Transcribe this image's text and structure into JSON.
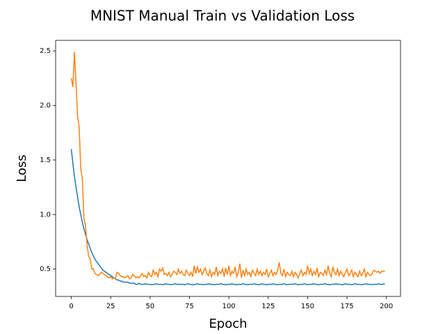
{
  "chart_data": {
    "type": "line",
    "title": "MNIST Manual Train vs Validation Loss",
    "x_label": "Epoch",
    "y_label": "Loss",
    "x": [
      0,
      1,
      2,
      3,
      4,
      5,
      6,
      7,
      8,
      9,
      10,
      11,
      12,
      13,
      14,
      15,
      16,
      17,
      18,
      19,
      20,
      21,
      22,
      23,
      24,
      25,
      26,
      27,
      28,
      29,
      30,
      31,
      32,
      33,
      34,
      35,
      36,
      37,
      38,
      39,
      40,
      41,
      42,
      43,
      44,
      45,
      46,
      47,
      48,
      49,
      50,
      51,
      52,
      53,
      54,
      55,
      56,
      57,
      58,
      59,
      60,
      61,
      62,
      63,
      64,
      65,
      66,
      67,
      68,
      69,
      70,
      71,
      72,
      73,
      74,
      75,
      76,
      77,
      78,
      79,
      80,
      81,
      82,
      83,
      84,
      85,
      86,
      87,
      88,
      89,
      90,
      91,
      92,
      93,
      94,
      95,
      96,
      97,
      98,
      99,
      100,
      101,
      102,
      103,
      104,
      105,
      106,
      107,
      108,
      109,
      110,
      111,
      112,
      113,
      114,
      115,
      116,
      117,
      118,
      119,
      120,
      121,
      122,
      123,
      124,
      125,
      126,
      127,
      128,
      129,
      130,
      131,
      132,
      133,
      134,
      135,
      136,
      137,
      138,
      139,
      140,
      141,
      142,
      143,
      144,
      145,
      146,
      147,
      148,
      149,
      150,
      151,
      152,
      153,
      154,
      155,
      156,
      157,
      158,
      159,
      160,
      161,
      162,
      163,
      164,
      165,
      166,
      167,
      168,
      169,
      170,
      171,
      172,
      173,
      174,
      175,
      176,
      177,
      178,
      179,
      180,
      181,
      182,
      183,
      184,
      185,
      186,
      187,
      188,
      189,
      190,
      191,
      192,
      193,
      194,
      195,
      196,
      197,
      198,
      199
    ],
    "series": [
      {
        "color": "#1f77b4",
        "values": [
          1.6,
          1.47,
          1.35,
          1.25,
          1.16,
          1.07,
          1.0,
          0.93,
          0.87,
          0.82,
          0.77,
          0.73,
          0.69,
          0.65,
          0.62,
          0.59,
          0.57,
          0.55,
          0.53,
          0.51,
          0.49,
          0.48,
          0.47,
          0.46,
          0.45,
          0.44,
          0.43,
          0.42,
          0.41,
          0.4,
          0.4,
          0.39,
          0.39,
          0.38,
          0.38,
          0.38,
          0.38,
          0.37,
          0.37,
          0.37,
          0.37,
          0.36,
          0.36,
          0.37,
          0.36,
          0.36,
          0.36,
          0.365,
          0.36,
          0.36,
          0.36,
          0.355,
          0.36,
          0.36,
          0.365,
          0.36,
          0.36,
          0.36,
          0.355,
          0.36,
          0.365,
          0.36,
          0.36,
          0.355,
          0.36,
          0.36,
          0.365,
          0.36,
          0.36,
          0.36,
          0.36,
          0.36,
          0.355,
          0.36,
          0.365,
          0.36,
          0.36,
          0.355,
          0.36,
          0.36,
          0.365,
          0.36,
          0.36,
          0.36,
          0.355,
          0.36,
          0.36,
          0.365,
          0.36,
          0.36,
          0.36,
          0.355,
          0.36,
          0.36,
          0.36,
          0.365,
          0.36,
          0.36,
          0.355,
          0.36,
          0.36,
          0.36,
          0.365,
          0.36,
          0.36,
          0.355,
          0.36,
          0.36,
          0.36,
          0.365,
          0.36,
          0.36,
          0.355,
          0.36,
          0.36,
          0.36,
          0.365,
          0.36,
          0.36,
          0.355,
          0.36,
          0.365,
          0.36,
          0.36,
          0.355,
          0.36,
          0.36,
          0.36,
          0.365,
          0.36,
          0.36,
          0.355,
          0.36,
          0.36,
          0.36,
          0.365,
          0.36,
          0.355,
          0.36,
          0.36,
          0.36,
          0.36,
          0.365,
          0.36,
          0.355,
          0.36,
          0.36,
          0.36,
          0.365,
          0.36,
          0.355,
          0.36,
          0.36,
          0.36,
          0.365,
          0.36,
          0.36,
          0.355,
          0.36,
          0.36,
          0.36,
          0.365,
          0.36,
          0.36,
          0.355,
          0.36,
          0.36,
          0.36,
          0.365,
          0.36,
          0.36,
          0.36,
          0.355,
          0.36,
          0.365,
          0.36,
          0.36,
          0.36,
          0.355,
          0.36,
          0.365,
          0.36,
          0.36,
          0.36,
          0.355,
          0.36,
          0.36,
          0.365,
          0.36,
          0.36,
          0.36,
          0.355,
          0.36,
          0.36,
          0.36,
          0.365,
          0.36,
          0.36,
          0.36,
          0.365
        ]
      },
      {
        "color": "#ff7f0e",
        "values": [
          2.25,
          2.17,
          2.49,
          2.2,
          1.9,
          1.8,
          1.42,
          1.33,
          0.97,
          0.9,
          0.72,
          0.62,
          0.59,
          0.5,
          0.5,
          0.46,
          0.45,
          0.44,
          0.45,
          0.47,
          0.46,
          0.45,
          0.44,
          0.43,
          0.42,
          0.43,
          0.41,
          0.42,
          0.41,
          0.47,
          0.46,
          0.44,
          0.43,
          0.43,
          0.42,
          0.43,
          0.44,
          0.41,
          0.42,
          0.45,
          0.44,
          0.42,
          0.43,
          0.42,
          0.44,
          0.46,
          0.43,
          0.44,
          0.42,
          0.47,
          0.44,
          0.43,
          0.49,
          0.45,
          0.47,
          0.43,
          0.5,
          0.48,
          0.51,
          0.45,
          0.46,
          0.44,
          0.47,
          0.43,
          0.45,
          0.48,
          0.47,
          0.45,
          0.5,
          0.46,
          0.48,
          0.45,
          0.44,
          0.49,
          0.46,
          0.44,
          0.47,
          0.43,
          0.53,
          0.46,
          0.52,
          0.47,
          0.5,
          0.45,
          0.48,
          0.51,
          0.46,
          0.44,
          0.49,
          0.43,
          0.47,
          0.45,
          0.52,
          0.44,
          0.48,
          0.46,
          0.5,
          0.43,
          0.51,
          0.45,
          0.53,
          0.44,
          0.48,
          0.46,
          0.52,
          0.43,
          0.47,
          0.55,
          0.42,
          0.49,
          0.44,
          0.5,
          0.45,
          0.47,
          0.43,
          0.49,
          0.46,
          0.44,
          0.5,
          0.45,
          0.48,
          0.44,
          0.47,
          0.45,
          0.5,
          0.43,
          0.46,
          0.49,
          0.44,
          0.47,
          0.45,
          0.49,
          0.56,
          0.46,
          0.44,
          0.5,
          0.43,
          0.47,
          0.45,
          0.44,
          0.48,
          0.43,
          0.47,
          0.45,
          0.42,
          0.46,
          0.49,
          0.44,
          0.47,
          0.45,
          0.53,
          0.46,
          0.5,
          0.44,
          0.48,
          0.45,
          0.51,
          0.43,
          0.47,
          0.46,
          0.44,
          0.49,
          0.45,
          0.53,
          0.46,
          0.43,
          0.52,
          0.47,
          0.45,
          0.5,
          0.44,
          0.48,
          0.45,
          0.43,
          0.47,
          0.5,
          0.44,
          0.46,
          0.49,
          0.43,
          0.47,
          0.45,
          0.43,
          0.48,
          0.44,
          0.46,
          0.5,
          0.43,
          0.47,
          0.45,
          0.44,
          0.46,
          0.49,
          0.48,
          0.47,
          0.48,
          0.46,
          0.48,
          0.48,
          0.48
        ]
      }
    ],
    "xlim": [
      -9.95,
      208.95
    ],
    "xticks": [
      0,
      25,
      50,
      75,
      100,
      125,
      150,
      175,
      200
    ],
    "ylim": [
      0.249,
      2.597
    ],
    "yticks": [
      0.5,
      {
        "value": 1,
        "label": "1.0"
      },
      1.5,
      {
        "value": 2,
        "label": "2.0"
      },
      2.5
    ]
  }
}
